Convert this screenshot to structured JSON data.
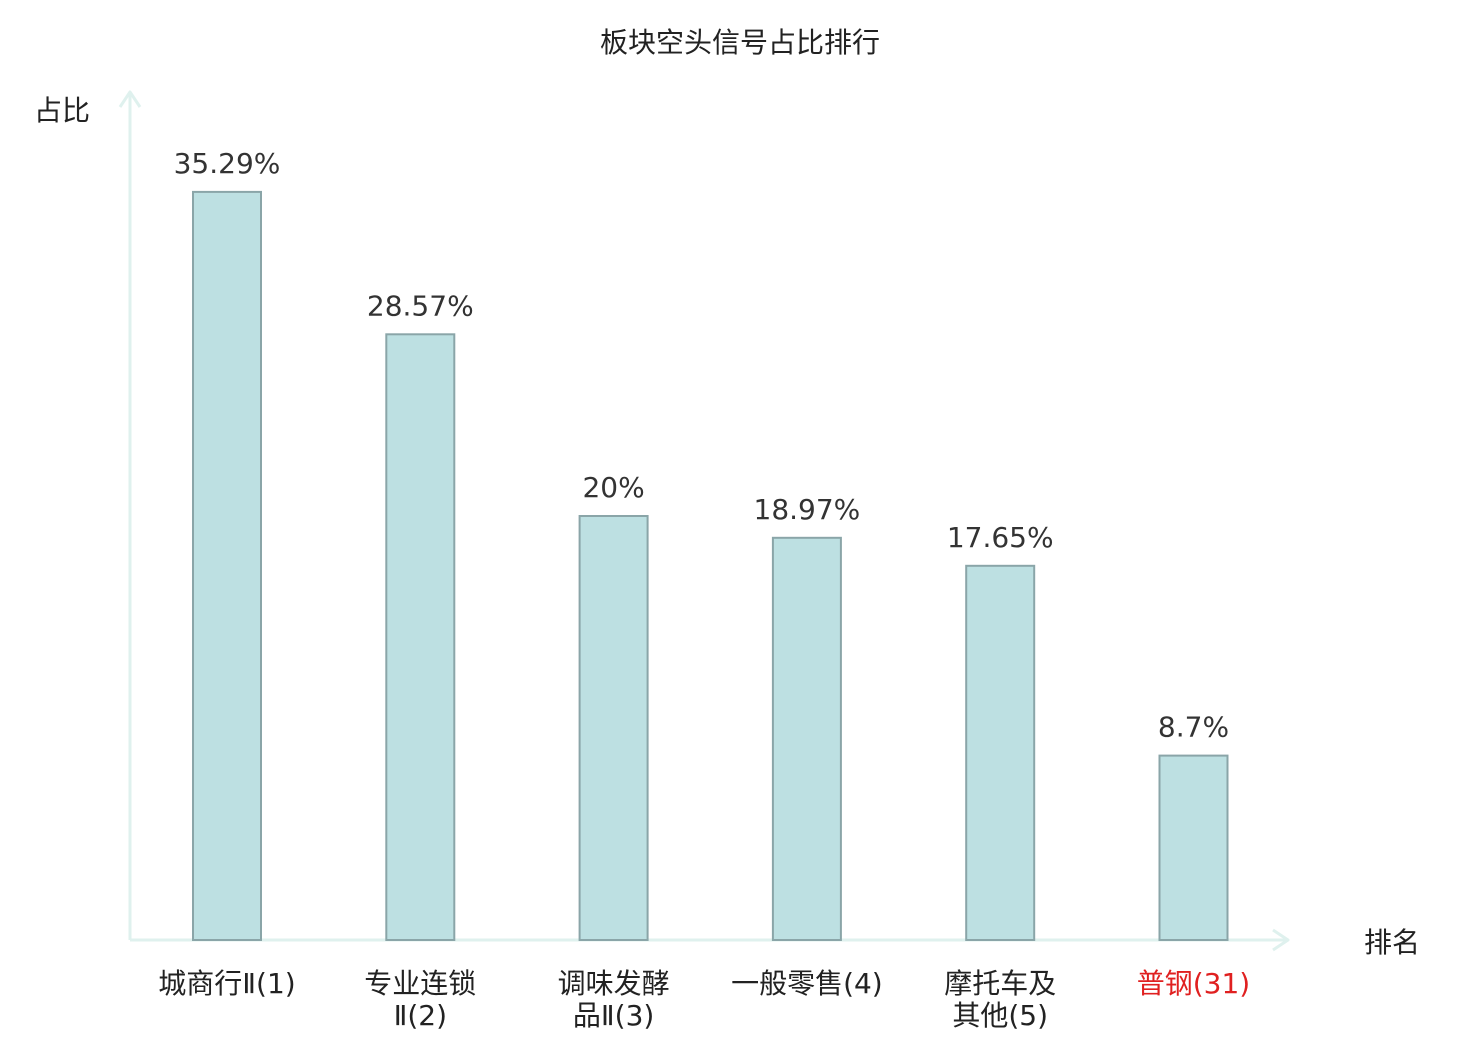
{
  "chart_data": {
    "type": "bar",
    "title": "板块空头信号占比排行",
    "ylabel": "占比",
    "xlabel": "排名",
    "ylim": [
      0,
      40
    ],
    "grid": false,
    "categories": [
      [
        "城商行Ⅱ(1)"
      ],
      [
        "专业连锁",
        "Ⅱ(2)"
      ],
      [
        "调味发酵",
        "品Ⅱ(3)"
      ],
      [
        "一般零售(4)"
      ],
      [
        "摩托车及",
        "其他(5)"
      ],
      [
        "普钢(31)"
      ]
    ],
    "values": [
      35.29,
      28.57,
      20,
      18.97,
      17.65,
      8.7
    ],
    "value_labels": [
      "35.29%",
      "28.57%",
      "20%",
      "18.97%",
      "17.65%",
      "8.7%"
    ],
    "highlight_index": 5
  },
  "colors": {
    "bar_fill": "#bde0e2",
    "bar_stroke": "#8aa5a8",
    "axis": "#dff1ee",
    "highlight_text": "#e02020",
    "text": "#222222"
  }
}
